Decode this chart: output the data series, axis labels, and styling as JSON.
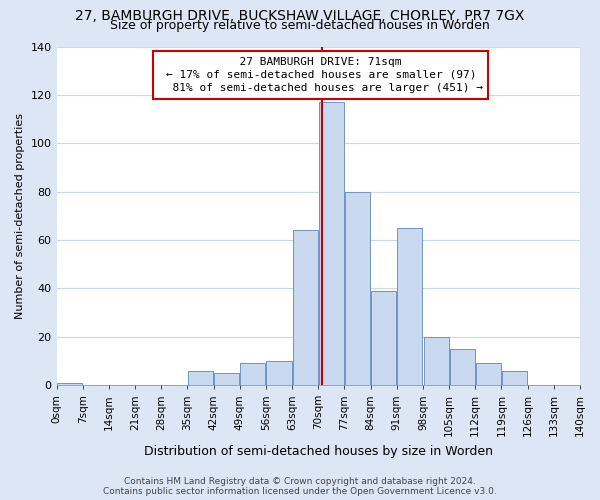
{
  "title": "27, BAMBURGH DRIVE, BUCKSHAW VILLAGE, CHORLEY, PR7 7GX",
  "subtitle": "Size of property relative to semi-detached houses in Worden",
  "xlabel": "Distribution of semi-detached houses by size in Worden",
  "ylabel_text": "Number of semi-detached properties",
  "property_size": 71,
  "smaller_pct": 17,
  "smaller_count": 97,
  "larger_pct": 81,
  "larger_count": 451,
  "bin_edges": [
    0,
    7,
    14,
    21,
    28,
    35,
    42,
    49,
    56,
    63,
    70,
    77,
    84,
    91,
    98,
    105,
    112,
    119,
    126,
    133,
    140
  ],
  "bar_heights": [
    1,
    0,
    0,
    0,
    0,
    6,
    5,
    9,
    10,
    64,
    117,
    80,
    39,
    65,
    20,
    15,
    9,
    6,
    0,
    0
  ],
  "bar_color": "#c9d9f0",
  "bar_edge_color": "#7094c3",
  "plot_bg_color": "#ffffff",
  "fig_bg_color": "#dce6f5",
  "vline_color": "#cc0000",
  "annotation_box_edge": "#cc0000",
  "annotation_box_face": "#ffffff",
  "grid_color": "#c8d8ee",
  "footer_text": "Contains HM Land Registry data © Crown copyright and database right 2024.\nContains public sector information licensed under the Open Government Licence v3.0.",
  "ylim": [
    0,
    140
  ],
  "yticks": [
    0,
    20,
    40,
    60,
    80,
    100,
    120,
    140
  ]
}
